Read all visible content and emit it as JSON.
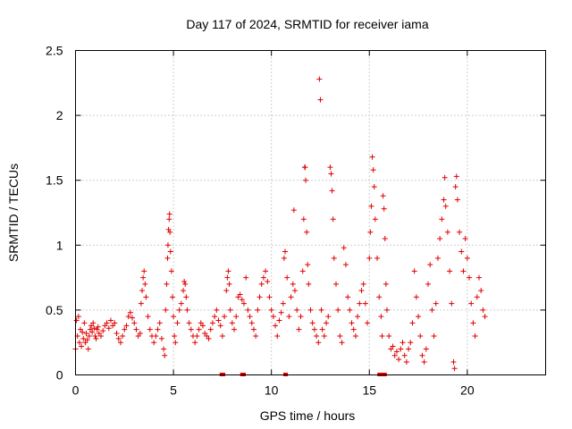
{
  "chart_data": {
    "type": "scatter",
    "title": "Day 117 of 2024, SRMTID for receiver iama",
    "xlabel": "GPS time / hours",
    "ylabel": "SRMTID / TECUs",
    "xlim": [
      0,
      24
    ],
    "ylim": [
      0,
      2.5
    ],
    "x_ticks": [
      0,
      5,
      10,
      15,
      20
    ],
    "x_tick_labels": [
      "0",
      "5",
      "10",
      "15",
      "20"
    ],
    "y_ticks": [
      0,
      0.5,
      1,
      1.5,
      2,
      2.5
    ],
    "y_tick_labels": [
      "0",
      "0.5",
      "1",
      "1.5",
      "2",
      "2.5"
    ],
    "grid": true,
    "marker": "+",
    "color": "#e00000",
    "series": [
      {
        "name": "SRMTID",
        "points": [
          [
            0.0,
            0.2
          ],
          [
            0.05,
            0.42
          ],
          [
            0.1,
            0.3
          ],
          [
            0.15,
            0.45
          ],
          [
            0.2,
            0.25
          ],
          [
            0.25,
            0.35
          ],
          [
            0.3,
            0.22
          ],
          [
            0.35,
            0.33
          ],
          [
            0.4,
            0.28
          ],
          [
            0.45,
            0.4
          ],
          [
            0.5,
            0.25
          ],
          [
            0.55,
            0.32
          ],
          [
            0.6,
            0.27
          ],
          [
            0.65,
            0.2
          ],
          [
            0.7,
            0.3
          ],
          [
            0.75,
            0.35
          ],
          [
            0.8,
            0.38
          ],
          [
            0.85,
            0.33
          ],
          [
            0.9,
            0.4
          ],
          [
            0.95,
            0.36
          ],
          [
            1.0,
            0.3
          ],
          [
            1.05,
            0.28
          ],
          [
            1.1,
            0.35
          ],
          [
            1.15,
            0.37
          ],
          [
            1.2,
            0.32
          ],
          [
            1.3,
            0.3
          ],
          [
            1.4,
            0.34
          ],
          [
            1.5,
            0.38
          ],
          [
            1.6,
            0.4
          ],
          [
            1.7,
            0.36
          ],
          [
            1.8,
            0.42
          ],
          [
            1.9,
            0.38
          ],
          [
            2.0,
            0.4
          ],
          [
            2.1,
            0.32
          ],
          [
            2.2,
            0.28
          ],
          [
            2.3,
            0.25
          ],
          [
            2.4,
            0.3
          ],
          [
            2.5,
            0.35
          ],
          [
            2.6,
            0.38
          ],
          [
            2.7,
            0.45
          ],
          [
            2.8,
            0.48
          ],
          [
            2.9,
            0.44
          ],
          [
            3.0,
            0.4
          ],
          [
            3.1,
            0.35
          ],
          [
            3.2,
            0.3
          ],
          [
            3.3,
            0.32
          ],
          [
            3.35,
            0.55
          ],
          [
            3.4,
            0.65
          ],
          [
            3.45,
            0.75
          ],
          [
            3.5,
            0.8
          ],
          [
            3.55,
            0.7
          ],
          [
            3.6,
            0.6
          ],
          [
            3.7,
            0.45
          ],
          [
            3.8,
            0.35
          ],
          [
            3.9,
            0.3
          ],
          [
            4.0,
            0.25
          ],
          [
            4.1,
            0.3
          ],
          [
            4.2,
            0.35
          ],
          [
            4.3,
            0.4
          ],
          [
            4.4,
            0.28
          ],
          [
            4.5,
            0.2
          ],
          [
            4.55,
            0.15
          ],
          [
            4.6,
            0.5
          ],
          [
            4.65,
            0.7
          ],
          [
            4.7,
            0.9
          ],
          [
            4.72,
            1.0
          ],
          [
            4.75,
            1.12
          ],
          [
            4.78,
            1.2
          ],
          [
            4.8,
            1.24
          ],
          [
            4.82,
            1.1
          ],
          [
            4.85,
            0.95
          ],
          [
            4.9,
            0.8
          ],
          [
            4.95,
            0.6
          ],
          [
            5.0,
            0.45
          ],
          [
            5.05,
            0.3
          ],
          [
            5.1,
            0.25
          ],
          [
            5.2,
            0.4
          ],
          [
            5.3,
            0.5
          ],
          [
            5.4,
            0.55
          ],
          [
            5.5,
            0.65
          ],
          [
            5.55,
            0.72
          ],
          [
            5.6,
            0.7
          ],
          [
            5.65,
            0.6
          ],
          [
            5.7,
            0.5
          ],
          [
            5.8,
            0.4
          ],
          [
            5.9,
            0.35
          ],
          [
            6.0,
            0.3
          ],
          [
            6.1,
            0.25
          ],
          [
            6.2,
            0.3
          ],
          [
            6.3,
            0.35
          ],
          [
            6.4,
            0.4
          ],
          [
            6.5,
            0.38
          ],
          [
            6.6,
            0.32
          ],
          [
            6.7,
            0.3
          ],
          [
            6.8,
            0.28
          ],
          [
            6.9,
            0.35
          ],
          [
            7.0,
            0.4
          ],
          [
            7.1,
            0.45
          ],
          [
            7.2,
            0.5
          ],
          [
            7.3,
            0.42
          ],
          [
            7.4,
            0.38
          ],
          [
            7.5,
            0.3
          ],
          [
            7.6,
            0.45
          ],
          [
            7.7,
            0.65
          ],
          [
            7.75,
            0.75
          ],
          [
            7.8,
            0.8
          ],
          [
            7.85,
            0.7
          ],
          [
            7.9,
            0.5
          ],
          [
            8.0,
            0.4
          ],
          [
            8.1,
            0.35
          ],
          [
            8.2,
            0.45
          ],
          [
            8.3,
            0.6
          ],
          [
            8.4,
            0.62
          ],
          [
            8.5,
            0.58
          ],
          [
            8.6,
            0.55
          ],
          [
            8.7,
            0.75
          ],
          [
            8.8,
            0.5
          ],
          [
            8.9,
            0.45
          ],
          [
            9.0,
            0.4
          ],
          [
            9.1,
            0.35
          ],
          [
            9.2,
            0.3
          ],
          [
            9.3,
            0.5
          ],
          [
            9.4,
            0.6
          ],
          [
            9.5,
            0.7
          ],
          [
            9.6,
            0.75
          ],
          [
            9.7,
            0.8
          ],
          [
            9.8,
            0.72
          ],
          [
            9.9,
            0.6
          ],
          [
            10.0,
            0.5
          ],
          [
            10.1,
            0.45
          ],
          [
            10.2,
            0.38
          ],
          [
            10.3,
            0.3
          ],
          [
            10.4,
            0.42
          ],
          [
            10.5,
            0.48
          ],
          [
            10.6,
            0.55
          ],
          [
            10.65,
            0.9
          ],
          [
            10.7,
            0.95
          ],
          [
            10.8,
            0.75
          ],
          [
            10.9,
            0.45
          ],
          [
            11.0,
            0.6
          ],
          [
            11.1,
            0.7
          ],
          [
            11.15,
            1.27
          ],
          [
            11.2,
            0.65
          ],
          [
            11.3,
            0.5
          ],
          [
            11.4,
            0.35
          ],
          [
            11.5,
            0.45
          ],
          [
            11.6,
            0.8
          ],
          [
            11.65,
            1.2
          ],
          [
            11.7,
            1.6
          ],
          [
            11.72,
            1.6
          ],
          [
            11.75,
            1.5
          ],
          [
            11.8,
            1.1
          ],
          [
            11.85,
            0.85
          ],
          [
            11.9,
            0.7
          ],
          [
            12.0,
            0.5
          ],
          [
            12.1,
            0.4
          ],
          [
            12.2,
            0.35
          ],
          [
            12.3,
            0.3
          ],
          [
            12.4,
            0.25
          ],
          [
            12.45,
            2.28
          ],
          [
            12.5,
            2.12
          ],
          [
            12.55,
            0.5
          ],
          [
            12.6,
            0.35
          ],
          [
            12.7,
            0.3
          ],
          [
            12.8,
            0.4
          ],
          [
            12.9,
            0.45
          ],
          [
            13.0,
            1.6
          ],
          [
            13.05,
            1.55
          ],
          [
            13.1,
            1.42
          ],
          [
            13.15,
            1.2
          ],
          [
            13.2,
            0.9
          ],
          [
            13.3,
            0.7
          ],
          [
            13.4,
            0.5
          ],
          [
            13.5,
            0.3
          ],
          [
            13.6,
            0.25
          ],
          [
            13.7,
            0.98
          ],
          [
            13.8,
            0.85
          ],
          [
            13.9,
            0.6
          ],
          [
            14.0,
            0.5
          ],
          [
            14.1,
            0.4
          ],
          [
            14.2,
            0.35
          ],
          [
            14.3,
            0.3
          ],
          [
            14.4,
            0.45
          ],
          [
            14.5,
            0.55
          ],
          [
            14.6,
            0.65
          ],
          [
            14.7,
            0.7
          ],
          [
            14.8,
            0.55
          ],
          [
            14.9,
            0.4
          ],
          [
            15.0,
            0.9
          ],
          [
            15.05,
            1.1
          ],
          [
            15.1,
            1.3
          ],
          [
            15.15,
            1.68
          ],
          [
            15.2,
            1.58
          ],
          [
            15.25,
            1.45
          ],
          [
            15.3,
            1.2
          ],
          [
            15.4,
            0.9
          ],
          [
            15.5,
            0.6
          ],
          [
            15.6,
            0.45
          ],
          [
            15.65,
            0.3
          ],
          [
            15.7,
            1.38
          ],
          [
            15.75,
            1.28
          ],
          [
            15.8,
            1.05
          ],
          [
            15.85,
            0.7
          ],
          [
            15.9,
            0.5
          ],
          [
            16.0,
            0.3
          ],
          [
            16.1,
            0.2
          ],
          [
            16.2,
            0.22
          ],
          [
            16.3,
            0.15
          ],
          [
            16.4,
            0.18
          ],
          [
            16.5,
            0.12
          ],
          [
            16.6,
            0.2
          ],
          [
            16.7,
            0.25
          ],
          [
            16.8,
            0.15
          ],
          [
            16.9,
            0.1
          ],
          [
            17.0,
            0.2
          ],
          [
            17.1,
            0.25
          ],
          [
            17.2,
            0.4
          ],
          [
            17.3,
            0.8
          ],
          [
            17.4,
            0.6
          ],
          [
            17.5,
            0.45
          ],
          [
            17.6,
            0.3
          ],
          [
            17.7,
            0.15
          ],
          [
            17.8,
            0.1
          ],
          [
            17.9,
            0.2
          ],
          [
            18.0,
            0.7
          ],
          [
            18.1,
            0.85
          ],
          [
            18.2,
            0.5
          ],
          [
            18.3,
            0.3
          ],
          [
            18.4,
            0.55
          ],
          [
            18.5,
            0.9
          ],
          [
            18.6,
            1.05
          ],
          [
            18.7,
            1.2
          ],
          [
            18.8,
            1.35
          ],
          [
            18.85,
            1.52
          ],
          [
            18.9,
            1.3
          ],
          [
            19.0,
            1.1
          ],
          [
            19.1,
            0.8
          ],
          [
            19.2,
            0.55
          ],
          [
            19.3,
            0.1
          ],
          [
            19.35,
            0.05
          ],
          [
            19.4,
            1.45
          ],
          [
            19.45,
            1.53
          ],
          [
            19.5,
            1.35
          ],
          [
            19.6,
            1.1
          ],
          [
            19.7,
            0.95
          ],
          [
            19.8,
            0.8
          ],
          [
            19.9,
            1.05
          ],
          [
            20.0,
            0.9
          ],
          [
            20.1,
            0.75
          ],
          [
            20.2,
            0.55
          ],
          [
            20.3,
            0.4
          ],
          [
            20.4,
            0.3
          ],
          [
            20.5,
            0.6
          ],
          [
            20.6,
            0.75
          ],
          [
            20.7,
            0.65
          ],
          [
            20.8,
            0.5
          ],
          [
            20.9,
            0.45
          ]
        ]
      }
    ],
    "zero_segments": [
      [
        7.45,
        7.55
      ],
      [
        8.5,
        8.6
      ],
      [
        10.7,
        10.75
      ],
      [
        15.5,
        15.8
      ]
    ]
  }
}
